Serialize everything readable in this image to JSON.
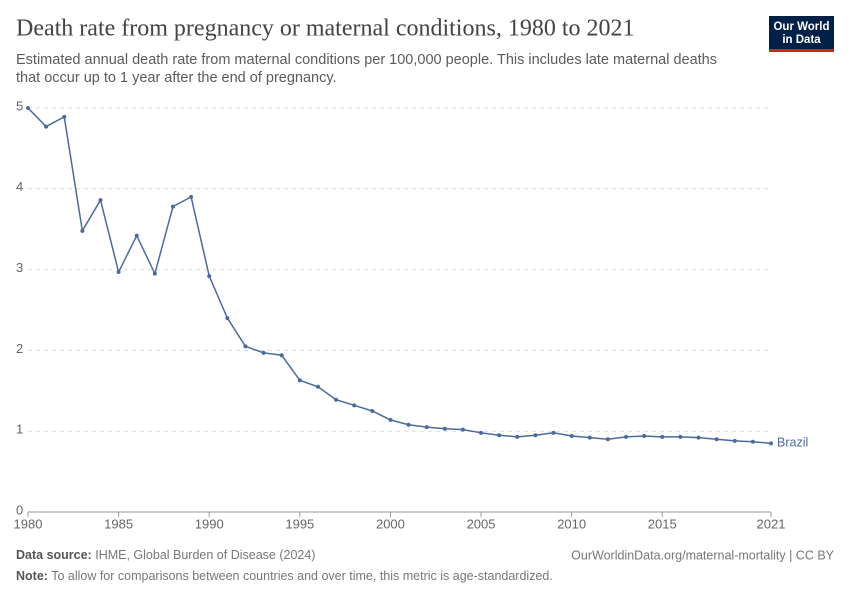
{
  "chart_data": {
    "type": "line",
    "title": "Death rate from pregnancy or maternal conditions, 1980 to 2021",
    "subtitle_lines": [
      "Estimated annual death rate from maternal conditions per 100,000 people. This includes late maternal deaths",
      "that occur up to 1 year after the end of pregnancy."
    ],
    "logo_lines": [
      "Our World",
      "in Data"
    ],
    "x": [
      1980,
      1981,
      1982,
      1983,
      1984,
      1985,
      1986,
      1987,
      1988,
      1989,
      1990,
      1991,
      1992,
      1993,
      1994,
      1995,
      1996,
      1997,
      1998,
      1999,
      2000,
      2001,
      2002,
      2003,
      2004,
      2005,
      2006,
      2007,
      2008,
      2009,
      2010,
      2011,
      2012,
      2013,
      2014,
      2015,
      2016,
      2017,
      2018,
      2019,
      2020,
      2021
    ],
    "series": [
      {
        "name": "Brazil",
        "color": "#4c6a9c",
        "values": [
          5.0,
          4.77,
          4.89,
          3.48,
          3.86,
          2.97,
          3.42,
          2.95,
          3.78,
          3.9,
          2.92,
          2.4,
          2.05,
          1.97,
          1.94,
          1.63,
          1.55,
          1.39,
          1.32,
          1.25,
          1.14,
          1.08,
          1.05,
          1.03,
          1.02,
          0.98,
          0.95,
          0.93,
          0.95,
          0.98,
          0.94,
          0.92,
          0.9,
          0.93,
          0.94,
          0.93,
          0.93,
          0.92,
          0.9,
          0.88,
          0.87,
          0.85
        ]
      }
    ],
    "xlim": [
      1980,
      2021
    ],
    "xticks": [
      1980,
      1985,
      1990,
      1995,
      2000,
      2005,
      2010,
      2015,
      2021
    ],
    "ylim": [
      0,
      5
    ],
    "yticks": [
      0,
      1,
      2,
      3,
      4,
      5
    ],
    "grid": true,
    "source_label": "Data source:",
    "source": "IHME, Global Burden of Disease (2024)",
    "url": "OurWorldinData.org/maternal-mortality | CC BY",
    "note_label": "Note:",
    "note": "To allow for comparisons between countries and over time, this metric is age-standardized."
  }
}
